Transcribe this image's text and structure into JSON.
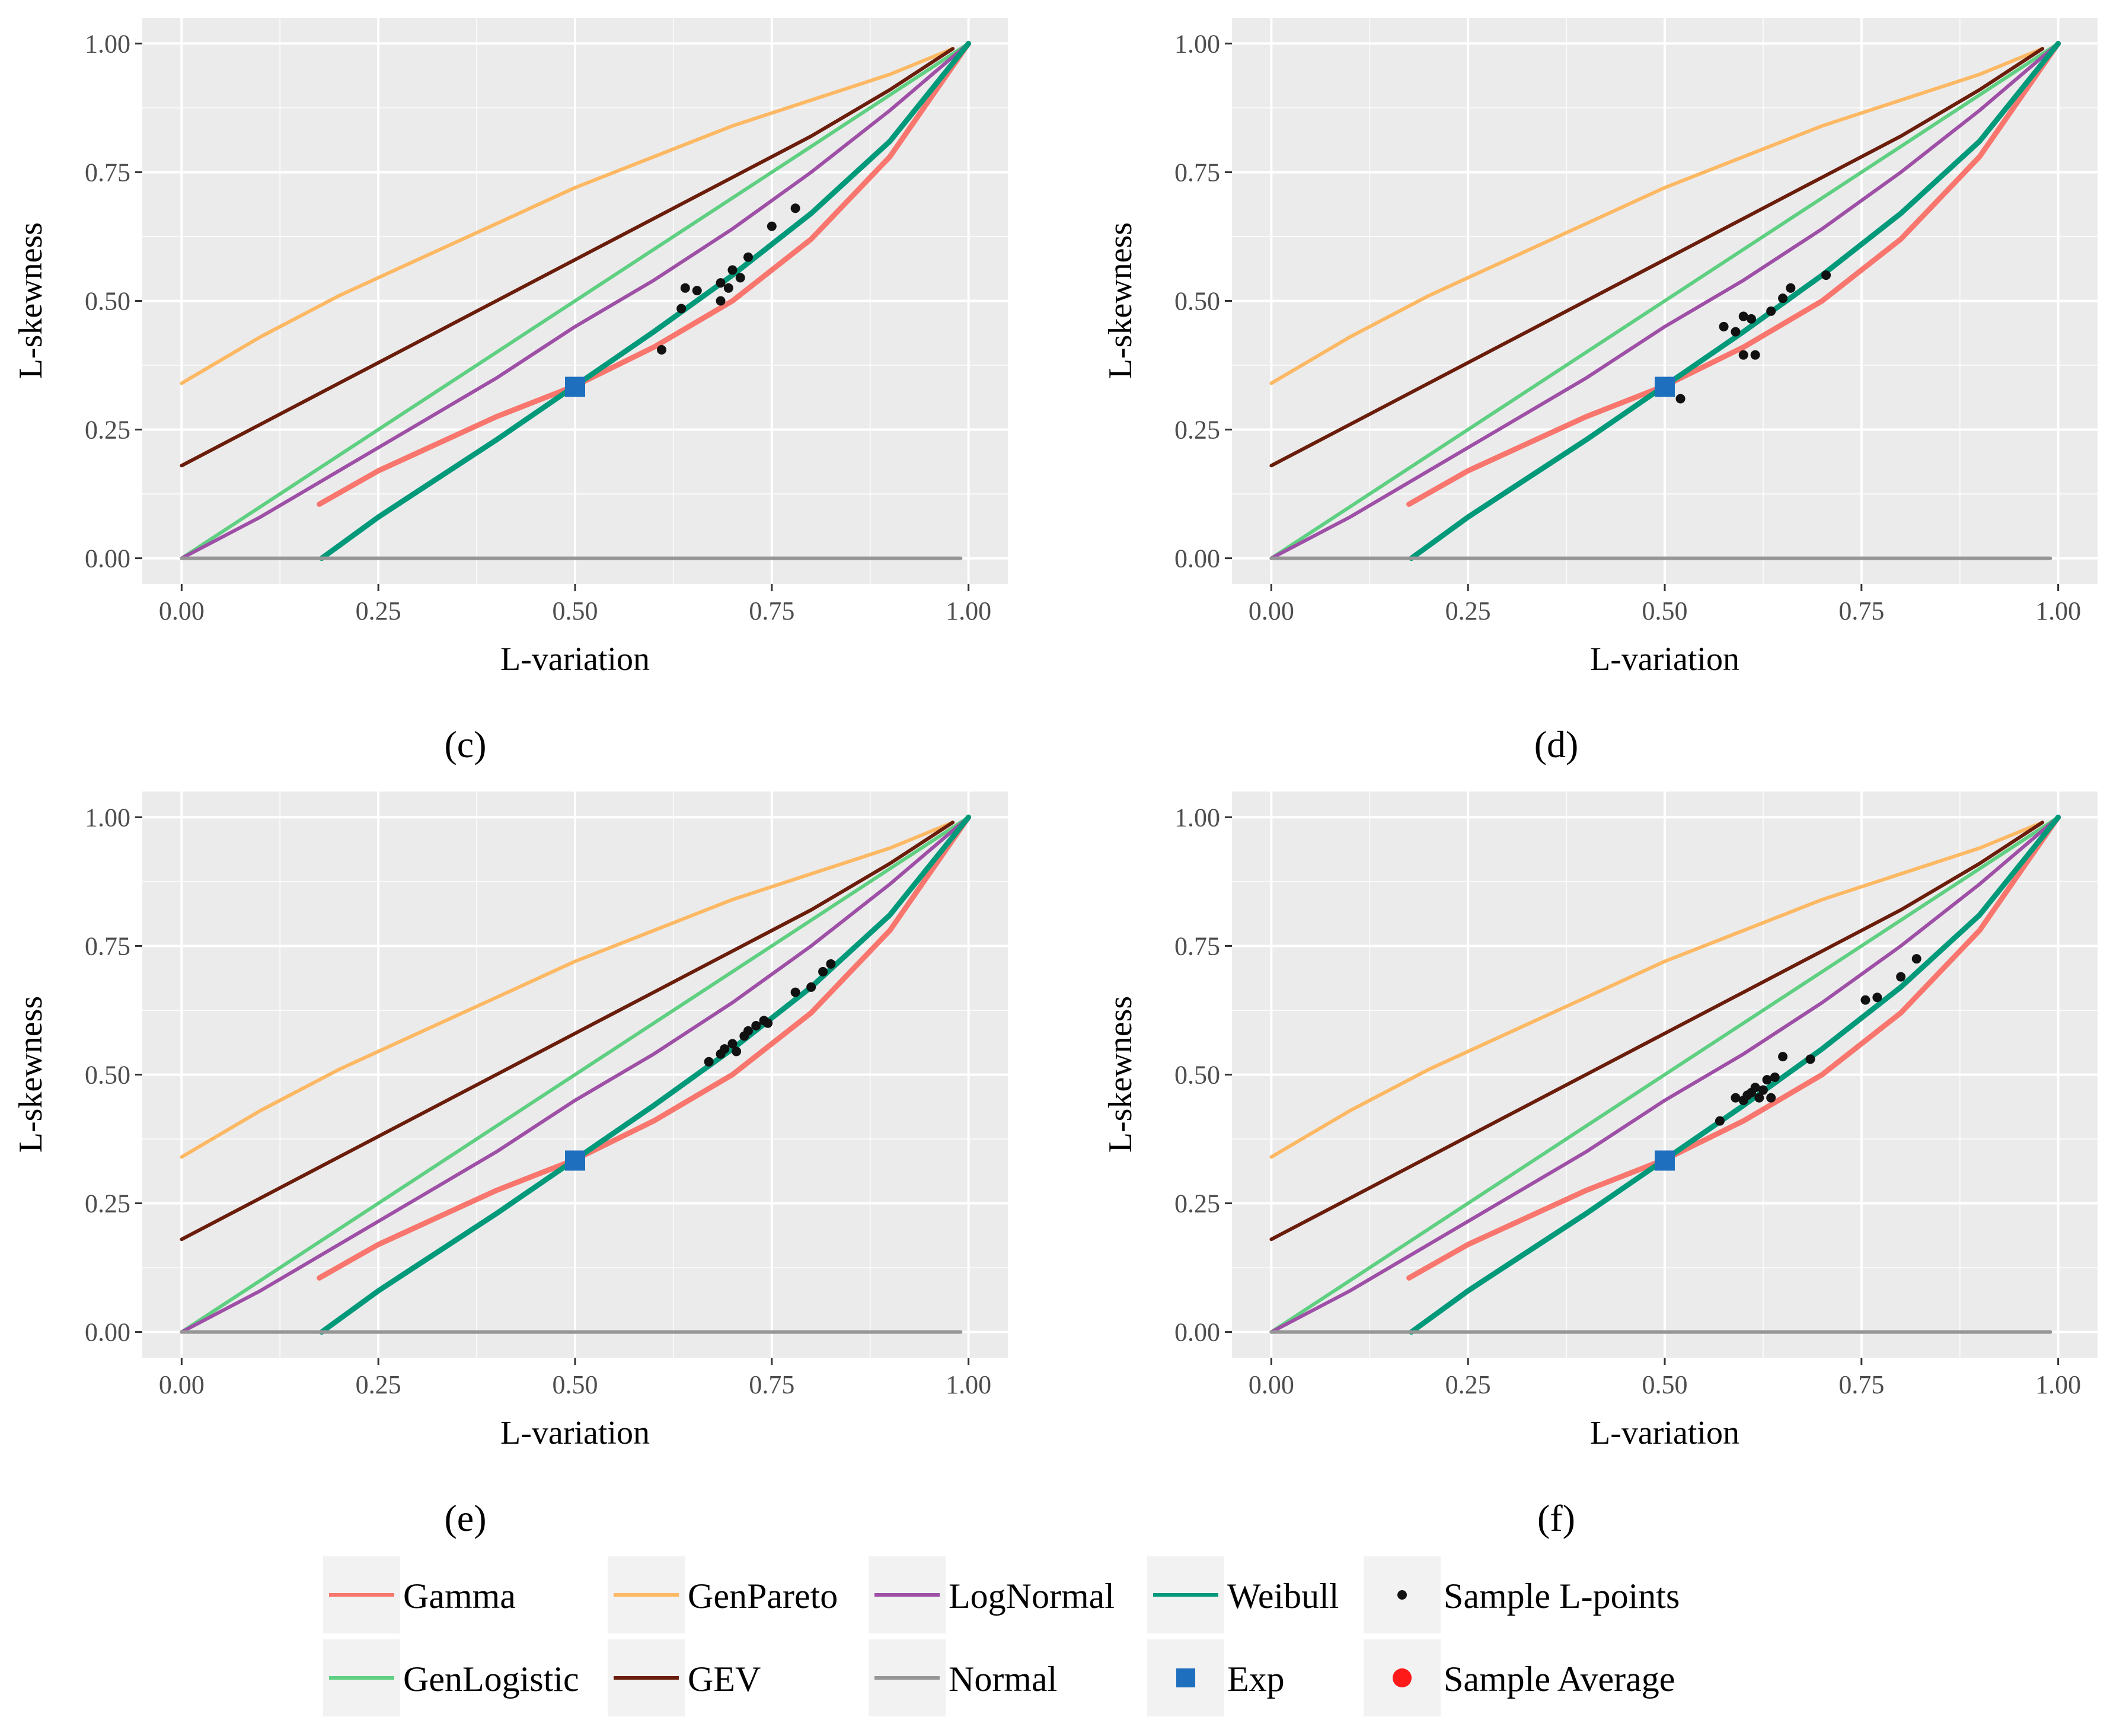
{
  "figure": {
    "panels": [
      "c",
      "d",
      "e",
      "f"
    ]
  },
  "colors": {
    "Gamma": "#f8766d",
    "GenPareto": "#fdb863",
    "LogNormal": "#9e4fa6",
    "Weibull": "#00997a",
    "GenLogistic": "#5fcf82",
    "GEV": "#6b1d0b",
    "Normal": "#969696",
    "Exp": "#1f6fbf",
    "SampleLpoints": "#111111",
    "SampleAverage": "#ff1a1a",
    "panel_bg": "#ebebeb",
    "grid": "#ffffff"
  },
  "legend": [
    {
      "key": "Gamma",
      "label": "Gamma",
      "kind": "line"
    },
    {
      "key": "GenPareto",
      "label": "GenPareto",
      "kind": "line"
    },
    {
      "key": "LogNormal",
      "label": "LogNormal",
      "kind": "line"
    },
    {
      "key": "Weibull",
      "label": "Weibull",
      "kind": "line"
    },
    {
      "key": "SampleLpoints",
      "label": "Sample L-points",
      "kind": "dot"
    },
    {
      "key": "GenLogistic",
      "label": "GenLogistic",
      "kind": "line"
    },
    {
      "key": "GEV",
      "label": "GEV",
      "kind": "line"
    },
    {
      "key": "Normal",
      "label": "Normal",
      "kind": "line"
    },
    {
      "key": "Exp",
      "label": "Exp",
      "kind": "square"
    },
    {
      "key": "SampleAverage",
      "label": "Sample Average",
      "kind": "bigdot"
    }
  ],
  "chart_data": [
    {
      "type": "line",
      "panel_label": "(c)",
      "xlabel": "L-variation",
      "ylabel": "L-skewness",
      "xlim": [
        -0.05,
        1.05
      ],
      "ylim": [
        -0.05,
        1.05
      ],
      "xticks": [
        "0.00",
        "0.25",
        "0.50",
        "0.75",
        "1.00"
      ],
      "yticks": [
        "0.00",
        "0.25",
        "0.50",
        "0.75",
        "1.00"
      ],
      "grid": true,
      "series": [
        {
          "name": "GenPareto",
          "x": [
            0.0,
            0.1,
            0.2,
            0.3,
            0.4,
            0.5,
            0.6,
            0.7,
            0.8,
            0.9,
            0.98
          ],
          "y": [
            0.34,
            0.43,
            0.51,
            0.58,
            0.65,
            0.72,
            0.78,
            0.84,
            0.89,
            0.94,
            0.99
          ]
        },
        {
          "name": "GEV",
          "x": [
            0.0,
            0.1,
            0.2,
            0.3,
            0.4,
            0.5,
            0.6,
            0.7,
            0.8,
            0.9,
            0.98
          ],
          "y": [
            0.18,
            0.26,
            0.34,
            0.42,
            0.5,
            0.58,
            0.66,
            0.74,
            0.82,
            0.91,
            0.99
          ]
        },
        {
          "name": "GenLogistic",
          "x": [
            0.0,
            0.25,
            0.5,
            0.75,
            1.0
          ],
          "y": [
            0.0,
            0.25,
            0.5,
            0.75,
            1.0
          ]
        },
        {
          "name": "LogNormal",
          "x": [
            0.0,
            0.1,
            0.2,
            0.3,
            0.4,
            0.5,
            0.6,
            0.7,
            0.8,
            0.9,
            1.0
          ],
          "y": [
            0.0,
            0.08,
            0.17,
            0.26,
            0.35,
            0.45,
            0.54,
            0.64,
            0.75,
            0.87,
            1.0
          ]
        },
        {
          "name": "Gamma",
          "x": [
            0.175,
            0.25,
            0.3,
            0.35,
            0.4,
            0.45,
            0.5,
            0.6,
            0.7,
            0.8,
            0.9,
            1.0
          ],
          "y": [
            0.105,
            0.17,
            0.205,
            0.24,
            0.275,
            0.305,
            0.335,
            0.41,
            0.5,
            0.62,
            0.78,
            1.0
          ]
        },
        {
          "name": "Weibull",
          "x": [
            0.178,
            0.25,
            0.3,
            0.4,
            0.5,
            0.6,
            0.7,
            0.8,
            0.9,
            1.0
          ],
          "y": [
            0.0,
            0.08,
            0.13,
            0.23,
            0.335,
            0.44,
            0.55,
            0.67,
            0.81,
            1.0
          ]
        },
        {
          "name": "Normal",
          "x": [
            0.0,
            0.99
          ],
          "y": [
            0.0,
            0.0
          ]
        }
      ],
      "exp_point": {
        "x": 0.5,
        "y": 0.333
      },
      "sample_points": [
        [
          0.61,
          0.405
        ],
        [
          0.635,
          0.485
        ],
        [
          0.64,
          0.525
        ],
        [
          0.655,
          0.52
        ],
        [
          0.685,
          0.5
        ],
        [
          0.685,
          0.535
        ],
        [
          0.695,
          0.525
        ],
        [
          0.7,
          0.56
        ],
        [
          0.71,
          0.545
        ],
        [
          0.72,
          0.585
        ],
        [
          0.75,
          0.645
        ],
        [
          0.78,
          0.68
        ]
      ]
    },
    {
      "type": "line",
      "panel_label": "(d)",
      "xlabel": "L-variation",
      "ylabel": "L-skewness",
      "xlim": [
        -0.05,
        1.05
      ],
      "ylim": [
        -0.05,
        1.05
      ],
      "xticks": [
        "0.00",
        "0.25",
        "0.50",
        "0.75",
        "1.00"
      ],
      "yticks": [
        "0.00",
        "0.25",
        "0.50",
        "0.75",
        "1.00"
      ],
      "grid": true,
      "series": [
        {
          "name": "GenPareto",
          "x": [
            0.0,
            0.1,
            0.2,
            0.3,
            0.4,
            0.5,
            0.6,
            0.7,
            0.8,
            0.9,
            0.98
          ],
          "y": [
            0.34,
            0.43,
            0.51,
            0.58,
            0.65,
            0.72,
            0.78,
            0.84,
            0.89,
            0.94,
            0.99
          ]
        },
        {
          "name": "GEV",
          "x": [
            0.0,
            0.1,
            0.2,
            0.3,
            0.4,
            0.5,
            0.6,
            0.7,
            0.8,
            0.9,
            0.98
          ],
          "y": [
            0.18,
            0.26,
            0.34,
            0.42,
            0.5,
            0.58,
            0.66,
            0.74,
            0.82,
            0.91,
            0.99
          ]
        },
        {
          "name": "GenLogistic",
          "x": [
            0.0,
            0.25,
            0.5,
            0.75,
            1.0
          ],
          "y": [
            0.0,
            0.25,
            0.5,
            0.75,
            1.0
          ]
        },
        {
          "name": "LogNormal",
          "x": [
            0.0,
            0.1,
            0.2,
            0.3,
            0.4,
            0.5,
            0.6,
            0.7,
            0.8,
            0.9,
            1.0
          ],
          "y": [
            0.0,
            0.08,
            0.17,
            0.26,
            0.35,
            0.45,
            0.54,
            0.64,
            0.75,
            0.87,
            1.0
          ]
        },
        {
          "name": "Gamma",
          "x": [
            0.175,
            0.25,
            0.3,
            0.35,
            0.4,
            0.45,
            0.5,
            0.6,
            0.7,
            0.8,
            0.9,
            1.0
          ],
          "y": [
            0.105,
            0.17,
            0.205,
            0.24,
            0.275,
            0.305,
            0.335,
            0.41,
            0.5,
            0.62,
            0.78,
            1.0
          ]
        },
        {
          "name": "Weibull",
          "x": [
            0.178,
            0.25,
            0.3,
            0.4,
            0.5,
            0.6,
            0.7,
            0.8,
            0.9,
            1.0
          ],
          "y": [
            0.0,
            0.08,
            0.13,
            0.23,
            0.335,
            0.44,
            0.55,
            0.67,
            0.81,
            1.0
          ]
        },
        {
          "name": "Normal",
          "x": [
            0.0,
            0.99
          ],
          "y": [
            0.0,
            0.0
          ]
        }
      ],
      "exp_point": {
        "x": 0.5,
        "y": 0.333
      },
      "sample_points": [
        [
          0.52,
          0.31
        ],
        [
          0.575,
          0.45
        ],
        [
          0.59,
          0.44
        ],
        [
          0.6,
          0.395
        ],
        [
          0.6,
          0.47
        ],
        [
          0.61,
          0.465
        ],
        [
          0.615,
          0.395
        ],
        [
          0.635,
          0.48
        ],
        [
          0.65,
          0.505
        ],
        [
          0.66,
          0.525
        ],
        [
          0.705,
          0.55
        ]
      ]
    },
    {
      "type": "line",
      "panel_label": "(e)",
      "xlabel": "L-variation",
      "ylabel": "L-skewness",
      "xlim": [
        -0.05,
        1.05
      ],
      "ylim": [
        -0.05,
        1.05
      ],
      "xticks": [
        "0.00",
        "0.25",
        "0.50",
        "0.75",
        "1.00"
      ],
      "yticks": [
        "0.00",
        "0.25",
        "0.50",
        "0.75",
        "1.00"
      ],
      "grid": true,
      "series": [
        {
          "name": "GenPareto",
          "x": [
            0.0,
            0.1,
            0.2,
            0.3,
            0.4,
            0.5,
            0.6,
            0.7,
            0.8,
            0.9,
            0.98
          ],
          "y": [
            0.34,
            0.43,
            0.51,
            0.58,
            0.65,
            0.72,
            0.78,
            0.84,
            0.89,
            0.94,
            0.99
          ]
        },
        {
          "name": "GEV",
          "x": [
            0.0,
            0.1,
            0.2,
            0.3,
            0.4,
            0.5,
            0.6,
            0.7,
            0.8,
            0.9,
            0.98
          ],
          "y": [
            0.18,
            0.26,
            0.34,
            0.42,
            0.5,
            0.58,
            0.66,
            0.74,
            0.82,
            0.91,
            0.99
          ]
        },
        {
          "name": "GenLogistic",
          "x": [
            0.0,
            0.25,
            0.5,
            0.75,
            1.0
          ],
          "y": [
            0.0,
            0.25,
            0.5,
            0.75,
            1.0
          ]
        },
        {
          "name": "LogNormal",
          "x": [
            0.0,
            0.1,
            0.2,
            0.3,
            0.4,
            0.5,
            0.6,
            0.7,
            0.8,
            0.9,
            1.0
          ],
          "y": [
            0.0,
            0.08,
            0.17,
            0.26,
            0.35,
            0.45,
            0.54,
            0.64,
            0.75,
            0.87,
            1.0
          ]
        },
        {
          "name": "Gamma",
          "x": [
            0.175,
            0.25,
            0.3,
            0.35,
            0.4,
            0.45,
            0.5,
            0.6,
            0.7,
            0.8,
            0.9,
            1.0
          ],
          "y": [
            0.105,
            0.17,
            0.205,
            0.24,
            0.275,
            0.305,
            0.335,
            0.41,
            0.5,
            0.62,
            0.78,
            1.0
          ]
        },
        {
          "name": "Weibull",
          "x": [
            0.178,
            0.25,
            0.3,
            0.4,
            0.5,
            0.6,
            0.7,
            0.8,
            0.9,
            1.0
          ],
          "y": [
            0.0,
            0.08,
            0.13,
            0.23,
            0.335,
            0.44,
            0.55,
            0.67,
            0.81,
            1.0
          ]
        },
        {
          "name": "Normal",
          "x": [
            0.0,
            0.99
          ],
          "y": [
            0.0,
            0.0
          ]
        }
      ],
      "exp_point": {
        "x": 0.5,
        "y": 0.333
      },
      "sample_points": [
        [
          0.67,
          0.525
        ],
        [
          0.685,
          0.54
        ],
        [
          0.69,
          0.55
        ],
        [
          0.7,
          0.56
        ],
        [
          0.705,
          0.545
        ],
        [
          0.715,
          0.575
        ],
        [
          0.72,
          0.585
        ],
        [
          0.73,
          0.595
        ],
        [
          0.74,
          0.605
        ],
        [
          0.745,
          0.6
        ],
        [
          0.78,
          0.66
        ],
        [
          0.8,
          0.67
        ],
        [
          0.815,
          0.7
        ],
        [
          0.825,
          0.715
        ]
      ]
    },
    {
      "type": "line",
      "panel_label": "(f)",
      "xlabel": "L-variation",
      "ylabel": "L-skewness",
      "xlim": [
        -0.05,
        1.05
      ],
      "ylim": [
        -0.05,
        1.05
      ],
      "xticks": [
        "0.00",
        "0.25",
        "0.50",
        "0.75",
        "1.00"
      ],
      "yticks": [
        "0.00",
        "0.25",
        "0.50",
        "0.75",
        "1.00"
      ],
      "grid": true,
      "series": [
        {
          "name": "GenPareto",
          "x": [
            0.0,
            0.1,
            0.2,
            0.3,
            0.4,
            0.5,
            0.6,
            0.7,
            0.8,
            0.9,
            0.98
          ],
          "y": [
            0.34,
            0.43,
            0.51,
            0.58,
            0.65,
            0.72,
            0.78,
            0.84,
            0.89,
            0.94,
            0.99
          ]
        },
        {
          "name": "GEV",
          "x": [
            0.0,
            0.1,
            0.2,
            0.3,
            0.4,
            0.5,
            0.6,
            0.7,
            0.8,
            0.9,
            0.98
          ],
          "y": [
            0.18,
            0.26,
            0.34,
            0.42,
            0.5,
            0.58,
            0.66,
            0.74,
            0.82,
            0.91,
            0.99
          ]
        },
        {
          "name": "GenLogistic",
          "x": [
            0.0,
            0.25,
            0.5,
            0.75,
            1.0
          ],
          "y": [
            0.0,
            0.25,
            0.5,
            0.75,
            1.0
          ]
        },
        {
          "name": "LogNormal",
          "x": [
            0.0,
            0.1,
            0.2,
            0.3,
            0.4,
            0.5,
            0.6,
            0.7,
            0.8,
            0.9,
            1.0
          ],
          "y": [
            0.0,
            0.08,
            0.17,
            0.26,
            0.35,
            0.45,
            0.54,
            0.64,
            0.75,
            0.87,
            1.0
          ]
        },
        {
          "name": "Gamma",
          "x": [
            0.175,
            0.25,
            0.3,
            0.35,
            0.4,
            0.45,
            0.5,
            0.6,
            0.7,
            0.8,
            0.9,
            1.0
          ],
          "y": [
            0.105,
            0.17,
            0.205,
            0.24,
            0.275,
            0.305,
            0.335,
            0.41,
            0.5,
            0.62,
            0.78,
            1.0
          ]
        },
        {
          "name": "Weibull",
          "x": [
            0.178,
            0.25,
            0.3,
            0.4,
            0.5,
            0.6,
            0.7,
            0.8,
            0.9,
            1.0
          ],
          "y": [
            0.0,
            0.08,
            0.13,
            0.23,
            0.335,
            0.44,
            0.55,
            0.67,
            0.81,
            1.0
          ]
        },
        {
          "name": "Normal",
          "x": [
            0.0,
            0.99
          ],
          "y": [
            0.0,
            0.0
          ]
        }
      ],
      "exp_point": {
        "x": 0.5,
        "y": 0.333
      },
      "sample_points": [
        [
          0.57,
          0.41
        ],
        [
          0.59,
          0.455
        ],
        [
          0.6,
          0.45
        ],
        [
          0.605,
          0.46
        ],
        [
          0.61,
          0.465
        ],
        [
          0.615,
          0.475
        ],
        [
          0.62,
          0.455
        ],
        [
          0.625,
          0.47
        ],
        [
          0.63,
          0.49
        ],
        [
          0.635,
          0.455
        ],
        [
          0.64,
          0.495
        ],
        [
          0.65,
          0.535
        ],
        [
          0.685,
          0.53
        ],
        [
          0.755,
          0.645
        ],
        [
          0.77,
          0.65
        ],
        [
          0.8,
          0.69
        ],
        [
          0.82,
          0.725
        ]
      ]
    }
  ]
}
